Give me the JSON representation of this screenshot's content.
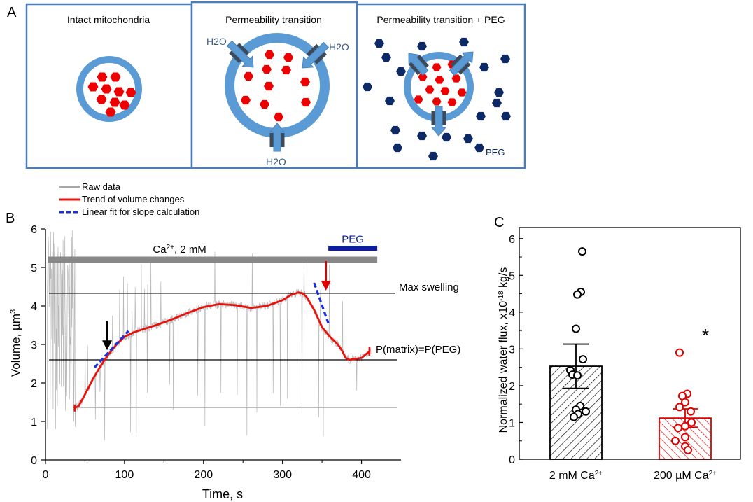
{
  "panel_a": {
    "label": "A",
    "boxes": [
      {
        "title": "Intact mitochondria"
      },
      {
        "title": "Permeability transition",
        "water_labels": [
          "H2O",
          "H2O",
          "H2O"
        ]
      },
      {
        "title": "Permeability transition + PEG",
        "peg_label": "PEG"
      }
    ]
  },
  "panel_b": {
    "label": "B",
    "legend": [
      "Raw data",
      "Trend of volume changes",
      "Linear fit for slope calculation"
    ],
    "bars": {
      "ca_label": "Ca",
      "ca_sup": "2+",
      "ca_rest": ", 2 mM",
      "peg_label": "PEG"
    },
    "annotations": {
      "max": "Max swelling",
      "eq": "P(matrix)=P(PEG)"
    },
    "xlabel": "Time, s",
    "ylabel_main": "Volume, µm",
    "ylabel_sup": "3",
    "xticks": [
      "0",
      "100",
      "200",
      "300",
      "400"
    ],
    "yticks": [
      "0",
      "1",
      "2",
      "3",
      "4",
      "5",
      "6"
    ]
  },
  "panel_c": {
    "label": "C",
    "ylabel_main": "Normalized water flux, x10",
    "ylabel_sup": "-18",
    "ylabel_rest": " kg/s",
    "yticks": [
      "0",
      "1",
      "2",
      "3",
      "4",
      "5",
      "6"
    ],
    "xticks": [
      {
        "main": "2 mM Ca",
        "sup": "2+"
      },
      {
        "main": "200 µM Ca",
        "sup": "2+"
      }
    ],
    "star": "*"
  },
  "chart_data": [
    {
      "type": "line",
      "xlabel": "Time, s",
      "ylabel": "Volume, µm3",
      "xlim": [
        0,
        450
      ],
      "ylim": [
        0,
        6
      ],
      "series": [
        {
          "name": "Trend of volume changes",
          "x": [
            37,
            42,
            50,
            60,
            70,
            80,
            90,
            100,
            110,
            120,
            140,
            160,
            180,
            200,
            220,
            240,
            260,
            280,
            300,
            310,
            320,
            325,
            330,
            340,
            350,
            360,
            370,
            375,
            380,
            385,
            390,
            400,
            410
          ],
          "y": [
            1.35,
            1.4,
            1.7,
            2.1,
            2.45,
            2.75,
            3.0,
            3.2,
            3.3,
            3.37,
            3.5,
            3.65,
            3.82,
            3.97,
            4.05,
            4.02,
            3.95,
            4.0,
            4.15,
            4.28,
            4.35,
            4.33,
            4.25,
            3.9,
            3.45,
            3.2,
            3.0,
            2.85,
            2.65,
            2.6,
            2.62,
            2.65,
            2.82
          ]
        },
        {
          "name": "Linear fit for slope calculation",
          "x": [
            62,
            105
          ],
          "y": [
            2.4,
            3.35
          ]
        },
        {
          "name": "Linear fit for slope calculation",
          "x": [
            340,
            358
          ],
          "y": [
            4.6,
            3.55
          ]
        }
      ],
      "horizontal_lines": [
        {
          "label": "Max swelling",
          "y": 4.33
        },
        {
          "label": "P(matrix)=P(PEG)",
          "y": 2.6
        },
        {
          "y": 1.37
        }
      ],
      "ca_bar": {
        "x": [
          3,
          420
        ],
        "y": 5.2
      },
      "peg_bar": {
        "x": [
          358,
          420
        ],
        "y": 5.5
      },
      "arrows": [
        {
          "x": 78,
          "y": 2.85,
          "color": "#000000"
        },
        {
          "x": 355,
          "y": 4.4,
          "color": "#e00000"
        }
      ]
    },
    {
      "type": "bar",
      "ylim": [
        0,
        6.3
      ],
      "categories": [
        "2 mM Ca2+",
        "200 µM Ca2+"
      ],
      "values": [
        2.53,
        1.12
      ],
      "errors": [
        0.6,
        0.25
      ],
      "colors": [
        "#000000",
        "#e00000"
      ],
      "points": [
        [
          5.65,
          4.55,
          4.48,
          3.55,
          2.72,
          2.42,
          2.3,
          2.28,
          1.45,
          1.35,
          1.3,
          1.23,
          1.15
        ],
        [
          2.9,
          1.78,
          1.72,
          1.55,
          1.42,
          1.3,
          1.0,
          0.9,
          0.85,
          0.6,
          0.5,
          0.35,
          0.25
        ]
      ]
    }
  ],
  "colors": {
    "panel_border": "#4a7ebb",
    "membrane": "#5b9bd5",
    "matrix_particle": "#ee0000",
    "peg_particle": "#0d2a66",
    "channel": "#3c4b5c",
    "raw": "#b8b8b8",
    "trend": "#e8120c",
    "fit": "#1a2fe0",
    "ca_bar": "#888888",
    "peg_bar": "#0e1e9a"
  }
}
